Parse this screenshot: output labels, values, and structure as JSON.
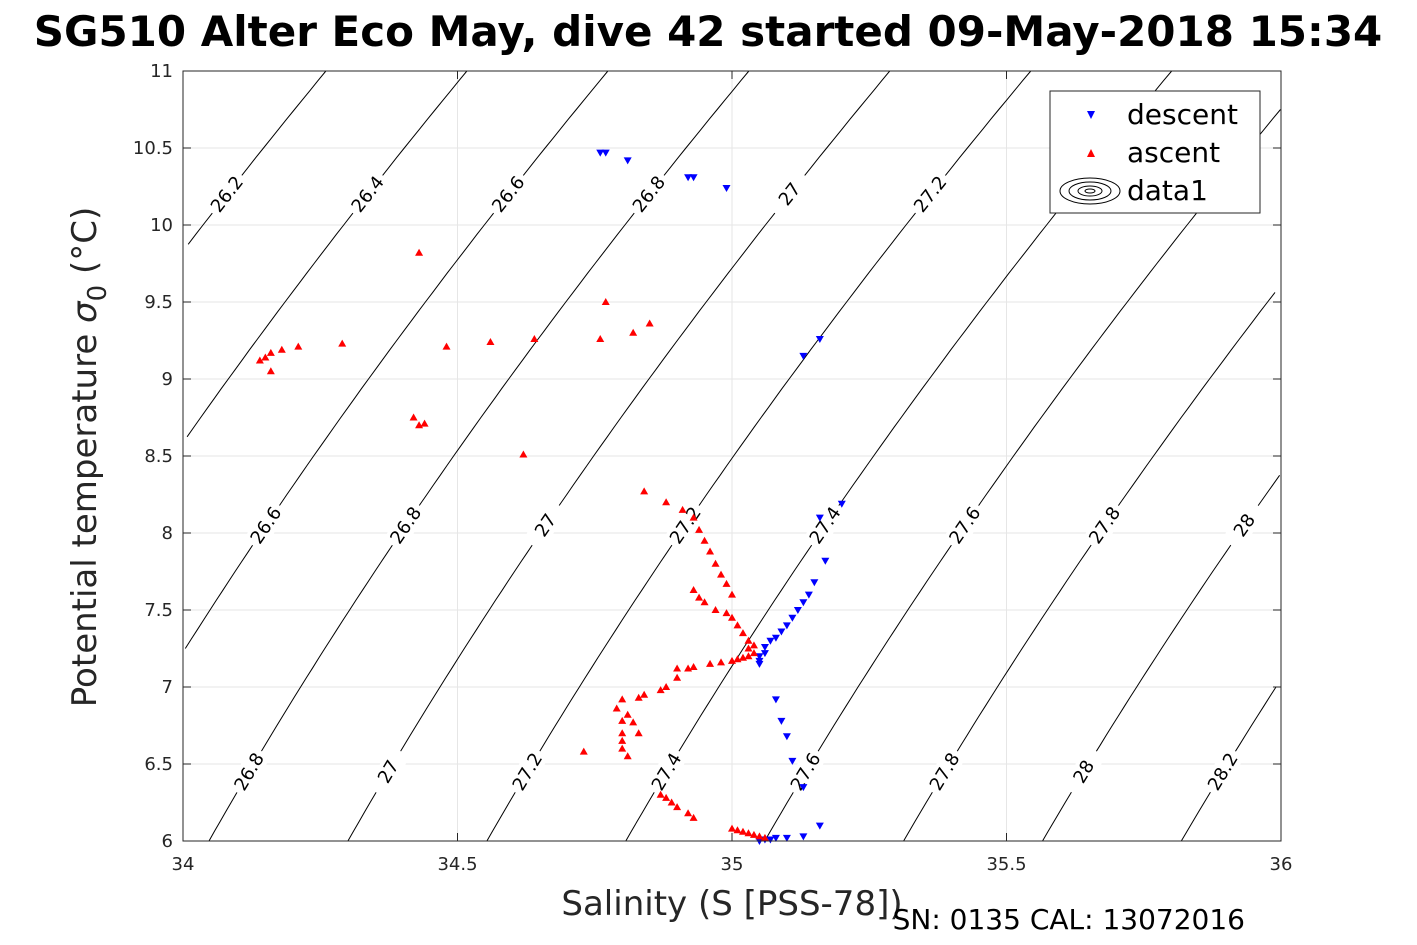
{
  "chart_data": {
    "type": "scatter",
    "title": "SG510 Alter Eco May, dive 42 started 09-May-2018 15:34",
    "xlabel": "Salinity (S [PSS-78])",
    "ylabel_prefix": "Potential temperature ",
    "ylabel_sigma": "σ",
    "ylabel_sub": "0",
    "ylabel_suffix": " (°C)",
    "footer": "SN: 0135  CAL: 13072016",
    "xlim": [
      34,
      36
    ],
    "ylim": [
      6,
      11
    ],
    "xticks": [
      "34",
      "34.5",
      "35",
      "35.5",
      "36"
    ],
    "yticks": [
      "6",
      "6.5",
      "7",
      "7.5",
      "8",
      "8.5",
      "9",
      "9.5",
      "10",
      "10.5",
      "11"
    ],
    "grid": true,
    "legend_position": "top-right",
    "legend": [
      {
        "label": "descent",
        "marker": "triangle-down",
        "color": "#0000ff"
      },
      {
        "label": "ascent",
        "marker": "triangle-up",
        "color": "#ff0000"
      },
      {
        "label": "data1",
        "marker": "contour",
        "color": "#000000"
      }
    ],
    "contours": {
      "levels": [
        26.2,
        26.4,
        26.6,
        26.8,
        27,
        27.2,
        27.4,
        27.6,
        27.8,
        28,
        28.2
      ],
      "label_texts": [
        "26.2",
        "26.4",
        "26.6",
        "26.8",
        "27",
        "27.2",
        "27.4",
        "27.6",
        "27.8",
        "28",
        "28.2"
      ]
    },
    "series": [
      {
        "name": "descent",
        "color": "#0000ff",
        "marker": "triangle-down",
        "points": [
          [
            34.76,
            10.47
          ],
          [
            34.77,
            10.47
          ],
          [
            34.81,
            10.42
          ],
          [
            34.92,
            10.31
          ],
          [
            34.93,
            10.31
          ],
          [
            34.99,
            10.24
          ],
          [
            35.13,
            9.15
          ],
          [
            35.16,
            9.26
          ],
          [
            35.16,
            8.1
          ],
          [
            35.2,
            8.19
          ],
          [
            35.17,
            7.82
          ],
          [
            35.15,
            7.68
          ],
          [
            35.14,
            7.6
          ],
          [
            35.13,
            7.55
          ],
          [
            35.12,
            7.5
          ],
          [
            35.11,
            7.45
          ],
          [
            35.1,
            7.4
          ],
          [
            35.09,
            7.36
          ],
          [
            35.08,
            7.32
          ],
          [
            35.07,
            7.3
          ],
          [
            35.06,
            7.26
          ],
          [
            35.06,
            7.22
          ],
          [
            35.05,
            7.2
          ],
          [
            35.05,
            7.17
          ],
          [
            35.05,
            7.15
          ],
          [
            35.08,
            6.92
          ],
          [
            35.09,
            6.78
          ],
          [
            35.1,
            6.68
          ],
          [
            35.11,
            6.52
          ],
          [
            35.13,
            6.35
          ],
          [
            35.16,
            6.1
          ],
          [
            35.13,
            6.03
          ],
          [
            35.1,
            6.02
          ],
          [
            35.08,
            6.02
          ],
          [
            35.07,
            6.01
          ],
          [
            35.06,
            6.01
          ],
          [
            35.05,
            6.0
          ]
        ]
      },
      {
        "name": "ascent",
        "color": "#ff0000",
        "marker": "triangle-up",
        "points": [
          [
            34.43,
            9.82
          ],
          [
            34.77,
            9.5
          ],
          [
            34.85,
            9.36
          ],
          [
            34.82,
            9.3
          ],
          [
            34.64,
            9.26
          ],
          [
            34.76,
            9.26
          ],
          [
            34.56,
            9.24
          ],
          [
            34.48,
            9.21
          ],
          [
            34.29,
            9.23
          ],
          [
            34.21,
            9.21
          ],
          [
            34.18,
            9.19
          ],
          [
            34.16,
            9.17
          ],
          [
            34.15,
            9.14
          ],
          [
            34.14,
            9.12
          ],
          [
            34.16,
            9.05
          ],
          [
            34.42,
            8.75
          ],
          [
            34.43,
            8.7
          ],
          [
            34.44,
            8.71
          ],
          [
            34.62,
            8.51
          ],
          [
            34.84,
            8.27
          ],
          [
            34.88,
            8.2
          ],
          [
            34.91,
            8.15
          ],
          [
            34.93,
            8.1
          ],
          [
            34.94,
            8.02
          ],
          [
            34.95,
            7.95
          ],
          [
            34.96,
            7.88
          ],
          [
            34.97,
            7.8
          ],
          [
            34.98,
            7.73
          ],
          [
            34.99,
            7.67
          ],
          [
            35.0,
            7.6
          ],
          [
            34.93,
            7.63
          ],
          [
            34.94,
            7.58
          ],
          [
            34.95,
            7.55
          ],
          [
            34.97,
            7.5
          ],
          [
            34.99,
            7.48
          ],
          [
            35.0,
            7.45
          ],
          [
            35.01,
            7.4
          ],
          [
            35.02,
            7.35
          ],
          [
            35.03,
            7.3
          ],
          [
            35.04,
            7.27
          ],
          [
            35.03,
            7.25
          ],
          [
            35.04,
            7.22
          ],
          [
            35.03,
            7.2
          ],
          [
            35.02,
            7.19
          ],
          [
            35.01,
            7.18
          ],
          [
            35.0,
            7.17
          ],
          [
            34.98,
            7.16
          ],
          [
            34.96,
            7.15
          ],
          [
            34.93,
            7.13
          ],
          [
            34.92,
            7.12
          ],
          [
            34.9,
            7.12
          ],
          [
            34.9,
            7.06
          ],
          [
            34.88,
            7.0
          ],
          [
            34.87,
            6.98
          ],
          [
            34.84,
            6.95
          ],
          [
            34.83,
            6.93
          ],
          [
            34.8,
            6.92
          ],
          [
            34.79,
            6.86
          ],
          [
            34.81,
            6.82
          ],
          [
            34.8,
            6.78
          ],
          [
            34.82,
            6.77
          ],
          [
            34.83,
            6.7
          ],
          [
            34.8,
            6.7
          ],
          [
            34.8,
            6.65
          ],
          [
            34.8,
            6.6
          ],
          [
            34.73,
            6.58
          ],
          [
            34.81,
            6.55
          ],
          [
            34.87,
            6.3
          ],
          [
            34.88,
            6.28
          ],
          [
            34.89,
            6.25
          ],
          [
            34.9,
            6.22
          ],
          [
            34.92,
            6.18
          ],
          [
            34.93,
            6.15
          ],
          [
            35.0,
            6.08
          ],
          [
            35.01,
            6.07
          ],
          [
            35.02,
            6.06
          ],
          [
            35.03,
            6.05
          ],
          [
            35.04,
            6.04
          ],
          [
            35.05,
            6.03
          ],
          [
            35.06,
            6.02
          ]
        ]
      }
    ]
  }
}
